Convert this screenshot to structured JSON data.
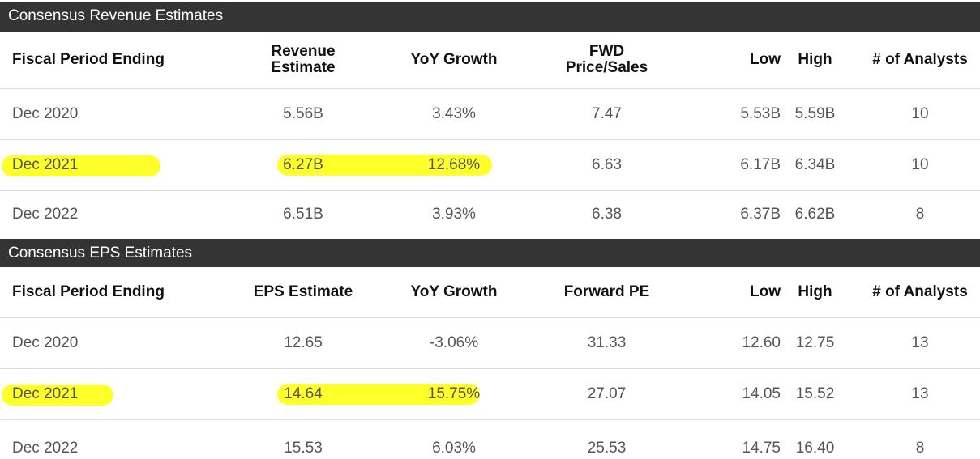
{
  "revenue": {
    "title": "Consensus Revenue Estimates",
    "headers": {
      "period": "Fiscal Period Ending",
      "estimate": "Revenue Estimate",
      "yoy": "YoY Growth",
      "fwd": "FWD Price/Sales",
      "low": "Low",
      "high": "High",
      "analysts": "# of Analysts"
    },
    "rows": [
      {
        "period": "Dec 2020",
        "estimate": "5.56B",
        "yoy": "3.43%",
        "fwd": "7.47",
        "low": "5.53B",
        "high": "5.59B",
        "analysts": "10"
      },
      {
        "period": "Dec 2021",
        "estimate": "6.27B",
        "yoy": "12.68%",
        "fwd": "6.63",
        "low": "6.17B",
        "high": "6.34B",
        "analysts": "10"
      },
      {
        "period": "Dec 2022",
        "estimate": "6.51B",
        "yoy": "3.93%",
        "fwd": "6.38",
        "low": "6.37B",
        "high": "6.62B",
        "analysts": "8"
      }
    ]
  },
  "eps": {
    "title": "Consensus EPS Estimates",
    "headers": {
      "period": "Fiscal Period Ending",
      "estimate": "EPS Estimate",
      "yoy": "YoY Growth",
      "fwd": "Forward PE",
      "low": "Low",
      "high": "High",
      "analysts": "# of Analysts"
    },
    "rows": [
      {
        "period": "Dec 2020",
        "estimate": "12.65",
        "yoy": "-3.06%",
        "fwd": "31.33",
        "low": "12.60",
        "high": "12.75",
        "analysts": "13"
      },
      {
        "period": "Dec 2021",
        "estimate": "14.64",
        "yoy": "15.75%",
        "fwd": "27.07",
        "low": "14.05",
        "high": "15.52",
        "analysts": "13"
      },
      {
        "period": "Dec 2022",
        "estimate": "15.53",
        "yoy": "6.03%",
        "fwd": "25.53",
        "low": "14.75",
        "high": "16.40",
        "analysts": "8"
      }
    ]
  },
  "colors": {
    "title_bar": "#343434",
    "highlight": "#ffff2a",
    "header_text": "#111111",
    "body_text": "#555555"
  }
}
